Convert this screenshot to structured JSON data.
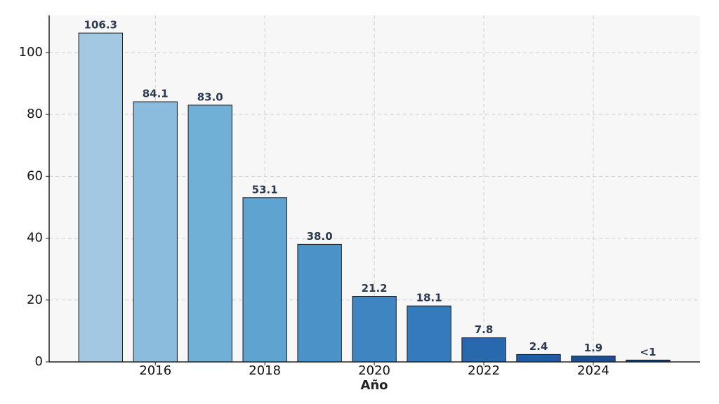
{
  "chart_data": {
    "type": "bar",
    "x_label": "Año",
    "x": [
      2015,
      2016,
      2017,
      2018,
      2019,
      2020,
      2021,
      2022,
      2023,
      2024,
      2025
    ],
    "values": [
      106.3,
      84.1,
      83.0,
      53.1,
      38.0,
      21.2,
      18.1,
      7.8,
      2.4,
      1.9,
      0.6
    ],
    "value_labels": [
      "106.3",
      "84.1",
      "83.0",
      "53.1",
      "38.0",
      "21.2",
      "18.1",
      "7.8",
      "2.4",
      "1.9",
      "<1"
    ],
    "colors": [
      "#a3c9e2",
      "#8bbcdd",
      "#70afd6",
      "#5fa3d1",
      "#4b92c8",
      "#3e85c2",
      "#357abd",
      "#2868ad",
      "#205ca1",
      "#1c4f8f",
      "#173f78"
    ],
    "xlim": [
      2014.06,
      2025.95
    ],
    "xticks": [
      2016,
      2018,
      2020,
      2022,
      2024
    ],
    "ylim": [
      0,
      112
    ],
    "yticks": [
      0,
      20,
      40,
      60,
      80,
      100
    ],
    "grid": true
  }
}
